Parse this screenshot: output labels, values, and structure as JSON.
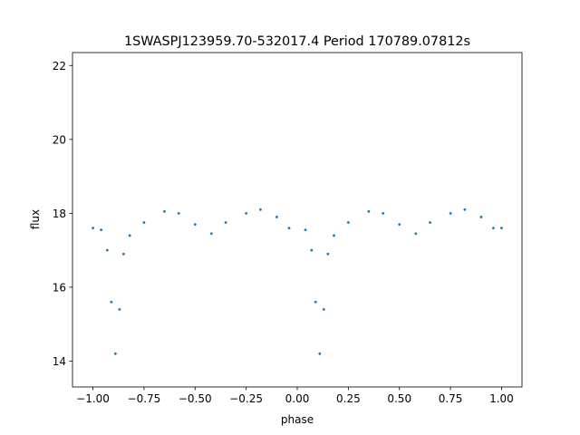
{
  "chart_data": {
    "type": "scatter",
    "title": "1SWASPJ123959.70-532017.4 Period 170789.07812s",
    "xlabel": "phase",
    "ylabel": "flux",
    "xlim": [
      -1.1,
      1.1
    ],
    "ylim": [
      13.3,
      22.35
    ],
    "x_ticks": [
      -1.0,
      -0.75,
      -0.5,
      -0.25,
      0.0,
      0.25,
      0.5,
      0.75,
      1.0
    ],
    "x_tick_labels": [
      "−1.00",
      "−0.75",
      "−0.50",
      "−0.25",
      "0.00",
      "0.25",
      "0.50",
      "0.75",
      "1.00"
    ],
    "y_ticks": [
      14,
      16,
      18,
      20,
      22
    ],
    "y_tick_labels": [
      "14",
      "16",
      "18",
      "20",
      "22"
    ],
    "grid": false,
    "legend": "none",
    "point_color": "#1f77b4",
    "series": [
      {
        "values": [
          {
            "x": -1.0,
            "y": 17.6
          },
          {
            "x": -0.96,
            "y": 17.55
          },
          {
            "x": -0.93,
            "y": 17.0
          },
          {
            "x": -0.91,
            "y": 15.6
          },
          {
            "x": -0.89,
            "y": 14.2
          },
          {
            "x": -0.87,
            "y": 15.4
          },
          {
            "x": -0.85,
            "y": 16.9
          },
          {
            "x": -0.82,
            "y": 17.4
          },
          {
            "x": -0.75,
            "y": 17.75
          },
          {
            "x": -0.65,
            "y": 18.05
          },
          {
            "x": -0.58,
            "y": 18.0
          },
          {
            "x": -0.5,
            "y": 17.7
          },
          {
            "x": -0.42,
            "y": 17.45
          },
          {
            "x": -0.35,
            "y": 17.75
          },
          {
            "x": -0.25,
            "y": 18.0
          },
          {
            "x": -0.18,
            "y": 18.1
          },
          {
            "x": -0.1,
            "y": 17.9
          },
          {
            "x": -0.04,
            "y": 17.6
          },
          {
            "x": 0.04,
            "y": 17.55
          },
          {
            "x": 0.07,
            "y": 17.0
          },
          {
            "x": 0.09,
            "y": 15.6
          },
          {
            "x": 0.11,
            "y": 14.2
          },
          {
            "x": 0.13,
            "y": 15.4
          },
          {
            "x": 0.15,
            "y": 16.9
          },
          {
            "x": 0.18,
            "y": 17.4
          },
          {
            "x": 0.25,
            "y": 17.75
          },
          {
            "x": 0.35,
            "y": 18.05
          },
          {
            "x": 0.42,
            "y": 18.0
          },
          {
            "x": 0.5,
            "y": 17.7
          },
          {
            "x": 0.58,
            "y": 17.45
          },
          {
            "x": 0.65,
            "y": 17.75
          },
          {
            "x": 0.75,
            "y": 18.0
          },
          {
            "x": 0.82,
            "y": 18.1
          },
          {
            "x": 0.9,
            "y": 17.9
          },
          {
            "x": 0.96,
            "y": 17.6
          },
          {
            "x": 1.0,
            "y": 17.6
          }
        ]
      }
    ]
  }
}
